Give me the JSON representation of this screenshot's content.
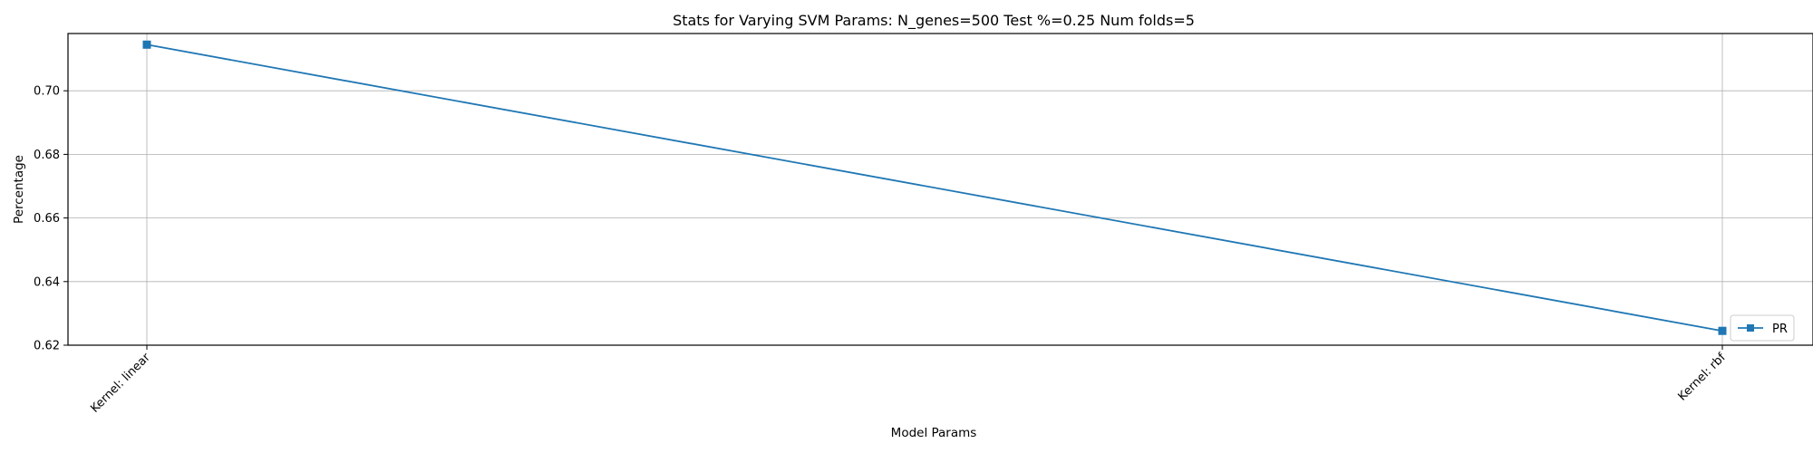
{
  "chart_data": {
    "type": "line",
    "title": "Stats for Varying SVM Params: N_genes=500 Test %=0.25 Num folds=5",
    "xlabel": "Model Params",
    "ylabel": "Percentage",
    "categories": [
      "Kernel: linear",
      "Kernel: rbf"
    ],
    "series": [
      {
        "name": "PR",
        "values": [
          0.7145,
          0.6245
        ],
        "color": "#1f77b4",
        "marker": "square"
      }
    ],
    "ylim": [
      0.62,
      0.718
    ],
    "yticks": [
      0.62,
      0.64,
      0.66,
      0.68,
      0.7
    ],
    "ytick_labels": [
      "0.62",
      "0.64",
      "0.66",
      "0.68",
      "0.70"
    ],
    "grid": true,
    "legend_position": "lower-right"
  }
}
